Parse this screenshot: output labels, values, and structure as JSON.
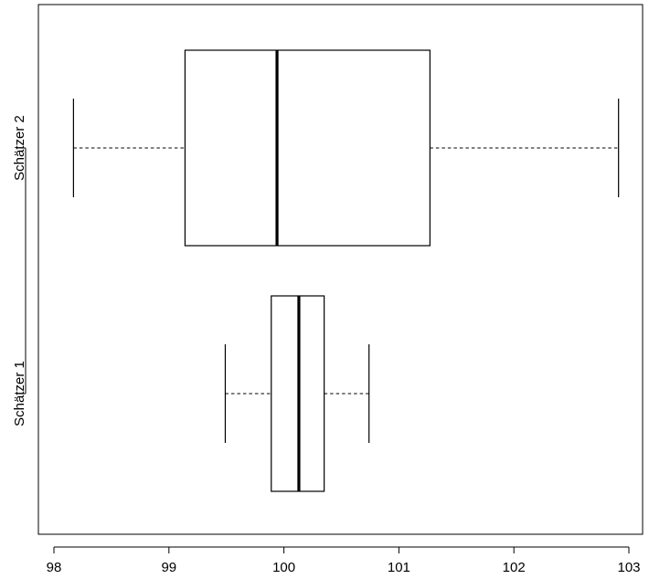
{
  "chart_data": {
    "type": "boxplot",
    "orientation": "horizontal",
    "title": "",
    "xlabel": "",
    "ylabel": "",
    "xlim": [
      98,
      103
    ],
    "x_ticks": [
      "98",
      "99",
      "100",
      "101",
      "102",
      "103"
    ],
    "x_tick_values": [
      98,
      99,
      100,
      101,
      102,
      103
    ],
    "categories": [
      "Schätzer 1",
      "Schätzer 2"
    ],
    "series": [
      {
        "category": "Schätzer 1",
        "min": 99.49,
        "q1": 99.89,
        "median": 100.13,
        "q3": 100.35,
        "max": 100.74
      },
      {
        "category": "Schätzer 2",
        "min": 98.17,
        "q1": 99.14,
        "median": 99.94,
        "q3": 101.27,
        "max": 102.91
      }
    ],
    "grid": false,
    "legend": "none"
  }
}
